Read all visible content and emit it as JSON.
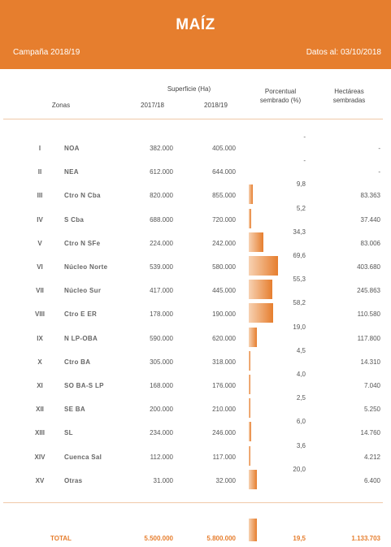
{
  "header": {
    "title": "MAÍZ",
    "campaign": "Campaña 2018/19",
    "date": "Datos al: 03/10/2018"
  },
  "columns": {
    "zones": "Zonas",
    "surface_title": "Superficie (Ha)",
    "year1": "2017/18",
    "year2": "2018/19",
    "pct_line1": "Porcentual",
    "pct_line2": "sembrado (%)",
    "ha_line1": "Hectáreas",
    "ha_line2": "sembradas"
  },
  "rows": [
    {
      "num": "I",
      "zone": "NOA",
      "s17": "382.000",
      "s18": "405.000",
      "pct": "-",
      "pct_value": 0,
      "ha": "-"
    },
    {
      "num": "II",
      "zone": "NEA",
      "s17": "612.000",
      "s18": "644.000",
      "pct": "-",
      "pct_value": 0,
      "ha": "-"
    },
    {
      "num": "III",
      "zone": "Ctro N Cba",
      "s17": "820.000",
      "s18": "855.000",
      "pct": "9,8",
      "pct_value": 9.8,
      "ha": "83.363"
    },
    {
      "num": "IV",
      "zone": "S Cba",
      "s17": "688.000",
      "s18": "720.000",
      "pct": "5,2",
      "pct_value": 5.2,
      "ha": "37.440"
    },
    {
      "num": "V",
      "zone": "Ctro N SFe",
      "s17": "224.000",
      "s18": "242.000",
      "pct": "34,3",
      "pct_value": 34.3,
      "ha": "83.006"
    },
    {
      "num": "VI",
      "zone": "Núcleo Norte",
      "s17": "539.000",
      "s18": "580.000",
      "pct": "69,6",
      "pct_value": 69.6,
      "ha": "403.680"
    },
    {
      "num": "VII",
      "zone": "Núcleo Sur",
      "s17": "417.000",
      "s18": "445.000",
      "pct": "55,3",
      "pct_value": 55.3,
      "ha": "245.863"
    },
    {
      "num": "VIII",
      "zone": "Ctro E ER",
      "s17": "178.000",
      "s18": "190.000",
      "pct": "58,2",
      "pct_value": 58.2,
      "ha": "110.580"
    },
    {
      "num": "IX",
      "zone": "N LP-OBA",
      "s17": "590.000",
      "s18": "620.000",
      "pct": "19,0",
      "pct_value": 19.0,
      "ha": "117.800"
    },
    {
      "num": "X",
      "zone": "Ctro BA",
      "s17": "305.000",
      "s18": "318.000",
      "pct": "4,5",
      "pct_value": 4.5,
      "ha": "14.310"
    },
    {
      "num": "XI",
      "zone": "SO BA-S LP",
      "s17": "168.000",
      "s18": "176.000",
      "pct": "4,0",
      "pct_value": 4.0,
      "ha": "7.040"
    },
    {
      "num": "XII",
      "zone": "SE BA",
      "s17": "200.000",
      "s18": "210.000",
      "pct": "2,5",
      "pct_value": 2.5,
      "ha": "5.250"
    },
    {
      "num": "XIII",
      "zone": "SL",
      "s17": "234.000",
      "s18": "246.000",
      "pct": "6,0",
      "pct_value": 6.0,
      "ha": "14.760"
    },
    {
      "num": "XIV",
      "zone": "Cuenca Sal",
      "s17": "112.000",
      "s18": "117.000",
      "pct": "3,6",
      "pct_value": 3.6,
      "ha": "4.212"
    },
    {
      "num": "XV",
      "zone": "Otras",
      "s17": "31.000",
      "s18": "32.000",
      "pct": "20,0",
      "pct_value": 20.0,
      "ha": "6.400"
    }
  ],
  "total": {
    "label": "TOTAL",
    "s17": "5.500.000",
    "s18": "5.800.000",
    "pct": "19,5",
    "pct_value": 19.5,
    "ha": "1.133.703"
  },
  "colors": {
    "accent": "#e67e2e",
    "bar_light": "#f7d2b3"
  }
}
